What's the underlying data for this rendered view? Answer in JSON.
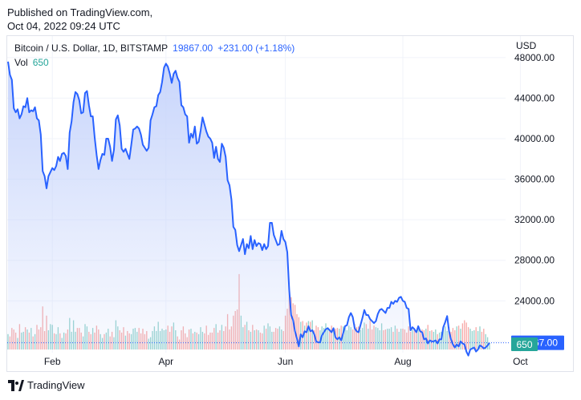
{
  "published": {
    "line1": "Published on TradingView.com,",
    "line2": "Oct 04, 2022 09:24 UTC"
  },
  "legend": {
    "symbol": "Bitcoin / U.S. Dollar, 1D, BITSTAMP",
    "last_price": "19867.00",
    "change": "+231.00 (+1.18%)",
    "vol_label": "Vol",
    "vol_value": "650"
  },
  "currency": "USD",
  "price_tag": "19867.00",
  "vol_tag": "650",
  "footer": {
    "brand": "TradingView",
    "logo_icon": "tradingview-logo-icon"
  },
  "colors": {
    "line": "#2962ff",
    "area_top": "#c5d3fb",
    "volume_up": "#26a69a",
    "volume_down": "#ef5350",
    "tag_price": "#2962ff",
    "tag_vol": "#26a69a"
  },
  "chart_data": {
    "type": "area",
    "title": "Bitcoin / U.S. Dollar, 1D, BITSTAMP",
    "xlabel": "",
    "ylabel": "USD",
    "x_ticks": [
      "Feb",
      "Apr",
      "Jun",
      "Aug",
      "Oct"
    ],
    "x_tick_index": [
      23,
      82,
      144,
      205,
      266
    ],
    "y_ticks": [
      20000,
      24000,
      28000,
      32000,
      36000,
      40000,
      44000,
      48000
    ],
    "ylim": [
      19200,
      50200
    ],
    "grid": true,
    "last_value": 19867,
    "series": [
      {
        "name": "Bitcoin / U.S. Dollar",
        "values": [
          47600,
          46300,
          45800,
          43000,
          42600,
          42900,
          42000,
          42400,
          43200,
          43100,
          44000,
          42600,
          42800,
          42700,
          43100,
          42000,
          41800,
          40400,
          36800,
          36300,
          35100,
          36300,
          36700,
          37100,
          36900,
          37300,
          38200,
          37800,
          38500,
          38600,
          38300,
          37000,
          40600,
          41700,
          43600,
          44600,
          44400,
          43800,
          42500,
          42600,
          44500,
          44700,
          43300,
          42200,
          42200,
          40100,
          38400,
          37000,
          37900,
          38500,
          38400,
          40000,
          40000,
          39200,
          37800,
          38900,
          41900,
          42300,
          41300,
          39000,
          38700,
          39000,
          38500,
          38000,
          39400,
          40900,
          41000,
          41200,
          41000,
          40400,
          39400,
          39100,
          38800,
          39100,
          41800,
          42400,
          43100,
          43200,
          44300,
          44600,
          45600,
          47000,
          47400,
          47100,
          46400,
          45500,
          46400,
          46700,
          46000,
          45600,
          43300,
          43100,
          42400,
          42200,
          39600,
          40500,
          40100,
          41200,
          39500,
          39700,
          40800,
          42100,
          41400,
          40700,
          40200,
          40000,
          39600,
          38100,
          39200,
          38000,
          37700,
          39500,
          39100,
          38200,
          35900,
          35400,
          34000,
          31300,
          31000,
          29500,
          28900,
          29500,
          30100,
          28600,
          29600,
          29200,
          30400,
          29100,
          30000,
          29400,
          29700,
          29600,
          29000,
          29600,
          29100,
          29400,
          31700,
          31700,
          30500,
          30000,
          29500,
          29600,
          30900,
          30100,
          29800,
          28800,
          25100,
          22600,
          22100,
          21000,
          20300,
          19500,
          20700,
          20400,
          21000,
          20900,
          21500,
          21000,
          21100,
          20700,
          20000,
          19900,
          19900,
          20600,
          20900,
          21200,
          21300,
          21100,
          20900,
          21300,
          20400,
          20200,
          20400,
          20100,
          20800,
          21500,
          21600,
          22400,
          22800,
          22400,
          21300,
          21000,
          20900,
          21600,
          22300,
          23100,
          22600,
          22600,
          22200,
          22000,
          21800,
          22000,
          22700,
          23100,
          23200,
          23000,
          22800,
          23300,
          23300,
          23900,
          23700,
          24000,
          23900,
          24300,
          24400,
          24000,
          23900,
          23300,
          23200,
          21100,
          21400,
          21200,
          20900,
          21500,
          21000,
          20900,
          20200,
          20300,
          19800,
          20100,
          20000,
          20000,
          20100,
          19800,
          20200,
          20200,
          21400,
          21900,
          22500,
          21000,
          20200,
          19700,
          19400,
          19700,
          19500,
          20000,
          19800,
          19700,
          19000,
          18600,
          19200,
          19300,
          19400,
          19000,
          19200,
          19600,
          19500,
          19300,
          19400,
          19600,
          19867
        ]
      },
      {
        "name": "Vol",
        "values": [
          0.2,
          0.17,
          0.28,
          0.26,
          0.22,
          0.15,
          0.33,
          0.22,
          0.23,
          0.29,
          0.26,
          0.22,
          0.28,
          0.17,
          0.2,
          0.32,
          0.26,
          0.29,
          0.56,
          0.24,
          0.44,
          0.25,
          0.33,
          0.32,
          0.21,
          0.2,
          0.29,
          0.21,
          0.15,
          0.22,
          0.21,
          0.26,
          0.41,
          0.23,
          0.38,
          0.23,
          0.28,
          0.28,
          0.22,
          0.17,
          0.33,
          0.3,
          0.23,
          0.2,
          0.28,
          0.22,
          0.31,
          0.26,
          0.2,
          0.15,
          0.2,
          0.22,
          0.27,
          0.17,
          0.23,
          0.16,
          0.38,
          0.3,
          0.25,
          0.22,
          0.29,
          0.18,
          0.24,
          0.21,
          0.2,
          0.27,
          0.28,
          0.23,
          0.28,
          0.21,
          0.27,
          0.2,
          0.24,
          0.14,
          0.16,
          0.24,
          0.3,
          0.24,
          0.36,
          0.24,
          0.27,
          0.25,
          0.26,
          0.31,
          0.23,
          0.3,
          0.35,
          0.25,
          0.17,
          0.13,
          0.25,
          0.3,
          0.21,
          0.16,
          0.26,
          0.27,
          0.21,
          0.23,
          0.22,
          0.2,
          0.29,
          0.23,
          0.21,
          0.31,
          0.19,
          0.22,
          0.22,
          0.28,
          0.33,
          0.22,
          0.25,
          0.32,
          0.24,
          0.3,
          0.46,
          0.26,
          0.3,
          0.44,
          0.5,
          0.52,
          0.98,
          0.44,
          0.29,
          0.32,
          0.36,
          0.25,
          0.23,
          0.32,
          0.25,
          0.26,
          0.25,
          0.22,
          0.21,
          0.31,
          0.27,
          0.34,
          0.3,
          0.23,
          0.23,
          0.28,
          0.27,
          0.3,
          0.26,
          0.24,
          0.44,
          0.53,
          0.77,
          0.68,
          0.6,
          0.58,
          0.46,
          0.42,
          0.36,
          0.37,
          0.31,
          0.35,
          0.37,
          0.36,
          0.38,
          0.25,
          0.31,
          0.29,
          0.25,
          0.3,
          0.28,
          0.34,
          0.29,
          0.24,
          0.31,
          0.26,
          0.27,
          0.28,
          0.27,
          0.31,
          0.3,
          0.28,
          0.25,
          0.31,
          0.29,
          0.26,
          0.33,
          0.29,
          0.3,
          0.25,
          0.28,
          0.35,
          0.33,
          0.27,
          0.38,
          0.26,
          0.31,
          0.29,
          0.28,
          0.25,
          0.34,
          0.25,
          0.26,
          0.27,
          0.27,
          0.29,
          0.23,
          0.31,
          0.27,
          0.23,
          0.27,
          0.27,
          0.26,
          0.22,
          0.3,
          0.23,
          0.26,
          0.28,
          0.24,
          0.3,
          0.25,
          0.26,
          0.25,
          0.27,
          0.32,
          0.24,
          0.25,
          0.23,
          0.26,
          0.2,
          0.22,
          0.23,
          0.3,
          0.3,
          0.24,
          0.29,
          0.23,
          0.28,
          0.25,
          0.3,
          0.31,
          0.27,
          0.34,
          0.38,
          0.35,
          0.29,
          0.27,
          0.24,
          0.25,
          0.29,
          0.24,
          0.3,
          0.23,
          0.27,
          0.2,
          0.16,
          0.08,
          0.06,
          0.08,
          0.05
        ]
      }
    ]
  }
}
